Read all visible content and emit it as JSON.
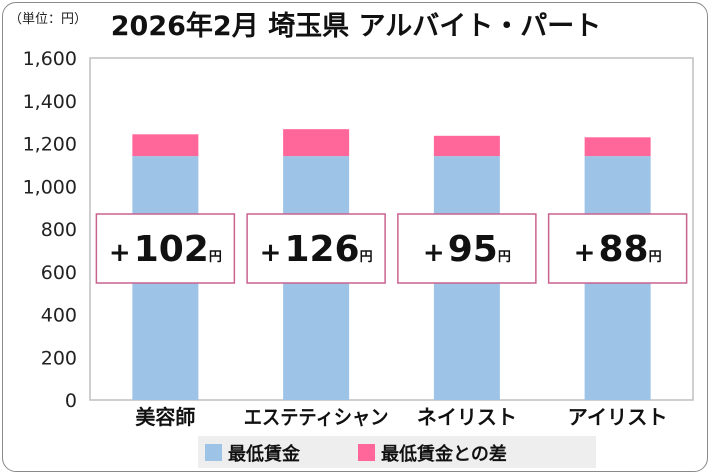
{
  "unit_label": "（単位：円）",
  "chart_data": {
    "type": "bar",
    "stacked": true,
    "title": "2026年2月 埼玉県 アルバイト・パート",
    "categories": [
      "美容師",
      "エステティシャン",
      "ネイリスト",
      "アイリスト"
    ],
    "series": [
      {
        "name": "最低賃金",
        "color": "#9dc3e6",
        "values": [
          1141,
          1141,
          1141,
          1141
        ]
      },
      {
        "name": "最低賃金との差",
        "color": "#ff6699",
        "values": [
          102,
          126,
          95,
          88
        ]
      }
    ],
    "diff_labels": [
      {
        "sign": "+",
        "number": "102",
        "unit": "円"
      },
      {
        "sign": "+",
        "number": "126",
        "unit": "円"
      },
      {
        "sign": "+",
        "number": "95",
        "unit": "円"
      },
      {
        "sign": "+",
        "number": "88",
        "unit": "円"
      }
    ],
    "yticks": [
      "0",
      "200",
      "400",
      "600",
      "800",
      "1,000",
      "1,200",
      "1,400",
      "1,600"
    ],
    "ylim": [
      0,
      1600
    ],
    "grid": false,
    "legend": "bottom",
    "plot_border_color": "#bfbfbf",
    "label_box_border_color": "#c9628f"
  }
}
